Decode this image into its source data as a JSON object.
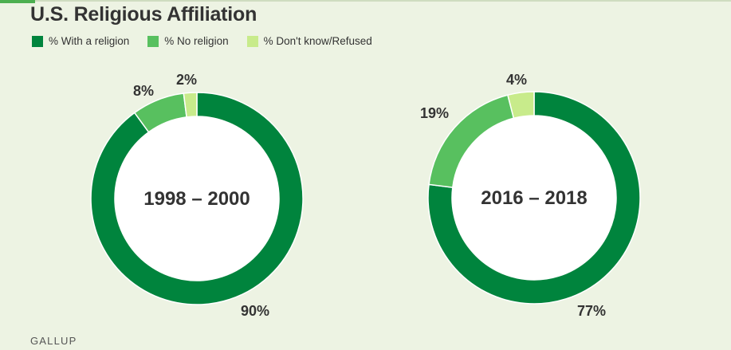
{
  "title": "U.S. Religious Affiliation",
  "source": "GALLUP",
  "legend": [
    {
      "label": "% With a religion",
      "color": "#00843d"
    },
    {
      "label": "% No religion",
      "color": "#58c05f"
    },
    {
      "label": "% Don't know/Refused",
      "color": "#c8eb8b"
    }
  ],
  "chart_data": [
    {
      "type": "pie",
      "title": "1998 – 2000",
      "categories": [
        "% With a religion",
        "% No religion",
        "% Don't know/Refused"
      ],
      "values": [
        90,
        8,
        2
      ],
      "value_labels": [
        "90%",
        "8%",
        "2%"
      ]
    },
    {
      "type": "pie",
      "title": "2016 – 2018",
      "categories": [
        "% With a religion",
        "% No religion",
        "% Don't know/Refused"
      ],
      "values": [
        77,
        19,
        4
      ],
      "value_labels": [
        "77%",
        "19%",
        "4%"
      ]
    }
  ]
}
